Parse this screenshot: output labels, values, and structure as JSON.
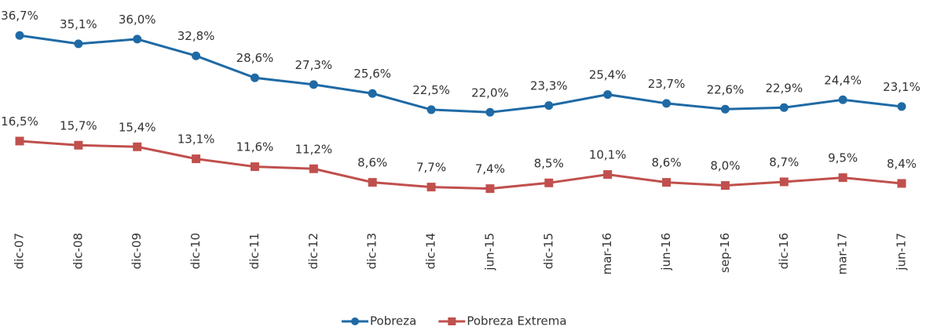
{
  "chart_data": {
    "type": "line",
    "categories": [
      "dic-07",
      "dic-08",
      "dic-09",
      "dic-10",
      "dic-11",
      "dic-12",
      "dic-13",
      "dic-14",
      "jun-15",
      "dic-15",
      "mar-16",
      "jun-16",
      "sep-16",
      "dic-16",
      "mar-17",
      "jun-17"
    ],
    "series": [
      {
        "name": "Pobreza",
        "color": "#1f6aa5",
        "values": [
          36.7,
          35.1,
          36.0,
          32.8,
          28.6,
          27.3,
          25.6,
          22.5,
          22.0,
          23.3,
          25.4,
          23.7,
          22.6,
          22.9,
          24.4,
          23.1
        ],
        "value_labels": [
          "36,7%",
          "35,1%",
          "36,0%",
          "32,8%",
          "28,6%",
          "27,3%",
          "25,6%",
          "22,5%",
          "22,0%",
          "23,3%",
          "25,4%",
          "23,7%",
          "22,6%",
          "22,9%",
          "24,4%",
          "23,1%"
        ]
      },
      {
        "name": "Pobreza Extrema",
        "color": "#c0504d",
        "values": [
          16.5,
          15.7,
          15.4,
          13.1,
          11.6,
          11.2,
          8.6,
          7.7,
          7.4,
          8.5,
          10.1,
          8.6,
          8.0,
          8.7,
          9.5,
          8.4
        ],
        "value_labels": [
          "16,5%",
          "15,7%",
          "15,4%",
          "13,1%",
          "11,6%",
          "11,2%",
          "8,6%",
          "7,7%",
          "7,4%",
          "8,5%",
          "10,1%",
          "8,6%",
          "8,0%",
          "8,7%",
          "9,5%",
          "8,4%"
        ]
      }
    ],
    "legend": "bottom"
  }
}
